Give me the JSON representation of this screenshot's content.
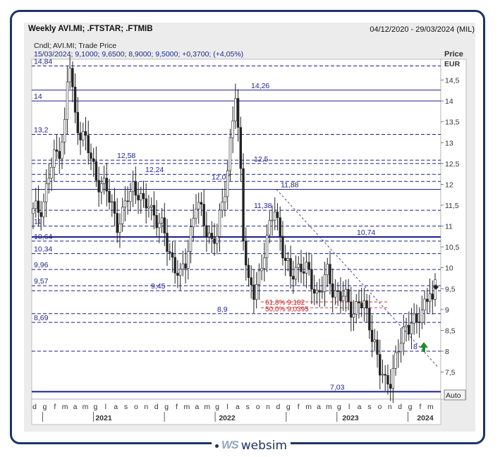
{
  "header": {
    "title": "Weekly AVI.MI; .FTSTAR; .FTMIB",
    "date_range": "04/12/2020 - 29/03/2024 (MIL)"
  },
  "brand": {
    "logo": "WS",
    "name": "websim"
  },
  "chart_data": {
    "type": "candlestick",
    "info_line_1": "Cndl; AVI.MI; Trade Price",
    "info_line_2": "15/03/2024; 9,1000; 9,6500; 8,9000; 9,5000; +0,3700; (+4,05%)",
    "ylabel": "Price",
    "yunit": "EUR",
    "ylim": [
      6.85,
      15.0
    ],
    "yticks": [
      "14,5",
      "14",
      "13,5",
      "13",
      "12,5",
      "12",
      "11,5",
      "11",
      "10,5",
      "10",
      "9,5",
      "9",
      "8,5",
      "8",
      "7,5"
    ],
    "ytick_values": [
      14.5,
      14,
      13.5,
      13,
      12.5,
      12,
      11.5,
      11,
      10.5,
      10,
      9.5,
      9,
      8.5,
      8,
      7.5
    ],
    "auto_label": "Auto",
    "x_month_letters": [
      "d",
      "g",
      "f",
      "m",
      "a",
      "m",
      "g",
      "l",
      "a",
      "s",
      "o",
      "n",
      "d",
      "g",
      "f",
      "m",
      "a",
      "m",
      "g",
      "l",
      "a",
      "s",
      "o",
      "n",
      "d",
      "g",
      "f",
      "m",
      "a",
      "m",
      "g",
      "l",
      "a",
      "s",
      "o",
      "n",
      "d",
      "g",
      "f",
      "m"
    ],
    "x_years": [
      "2021",
      "2022",
      "2023",
      "2024"
    ],
    "horizontal_levels": [
      {
        "label": "14,84",
        "value": 14.84,
        "style": "dashed"
      },
      {
        "label": "14,26",
        "value": 14.26,
        "style": "solid"
      },
      {
        "label": "14",
        "value": 14.0,
        "style": "solid"
      },
      {
        "label": "13,2",
        "value": 13.2,
        "style": "dashed"
      },
      {
        "label": "12,58",
        "value": 12.58,
        "style": "dashed"
      },
      {
        "label": "12,5",
        "value": 12.5,
        "style": "dashed"
      },
      {
        "label": "12,24",
        "value": 12.24,
        "style": "dashed"
      },
      {
        "label": "12,07",
        "value": 12.07,
        "style": "dashed"
      },
      {
        "label": "11,88",
        "value": 11.88,
        "style": "solid"
      },
      {
        "label": "11,38",
        "value": 11.38,
        "style": "dashed"
      },
      {
        "label": "11",
        "value": 11.0,
        "style": "dashed"
      },
      {
        "label": "10,74",
        "value": 10.74,
        "style": "solid"
      },
      {
        "label": "10,64",
        "value": 10.64,
        "style": "dashed"
      },
      {
        "label": "10,34",
        "value": 10.34,
        "style": "dashed"
      },
      {
        "label": "9,96",
        "value": 9.96,
        "style": "dashed"
      },
      {
        "label": "9,57",
        "value": 9.57,
        "style": "dashed"
      },
      {
        "label": "9,45",
        "value": 9.45,
        "style": "dashed"
      },
      {
        "label": "8,9",
        "value": 8.9,
        "style": "dashed"
      },
      {
        "label": "8,69",
        "value": 8.69,
        "style": "dashed"
      },
      {
        "label": "8",
        "value": 8.0,
        "style": "dashed"
      },
      {
        "label": "7,03",
        "value": 7.03,
        "style": "solid"
      }
    ],
    "fib_levels": [
      {
        "label": "61,8% 9,182",
        "value": 9.182
      },
      {
        "label": "50,0% 9,0395",
        "value": 9.0395
      }
    ],
    "price_track": [
      [
        0,
        11.3
      ],
      [
        2,
        11.4
      ],
      [
        4,
        11.6
      ],
      [
        6,
        12.2
      ],
      [
        8,
        12.6
      ],
      [
        10,
        12.9
      ],
      [
        12,
        13.4
      ],
      [
        13,
        14.4
      ],
      [
        14,
        14.84
      ],
      [
        15,
        14.2
      ],
      [
        16,
        13.6
      ],
      [
        18,
        13.3
      ],
      [
        20,
        13.0
      ],
      [
        22,
        12.6
      ],
      [
        24,
        12.2
      ],
      [
        26,
        12.0
      ],
      [
        28,
        11.8
      ],
      [
        30,
        11.5
      ],
      [
        32,
        11.1
      ],
      [
        34,
        11.2
      ],
      [
        36,
        11.7
      ],
      [
        38,
        12.0
      ],
      [
        40,
        11.8
      ],
      [
        42,
        11.4
      ],
      [
        44,
        11.6
      ],
      [
        46,
        11.3
      ],
      [
        48,
        11.0
      ],
      [
        50,
        10.8
      ],
      [
        52,
        10.4
      ],
      [
        54,
        10.0
      ],
      [
        56,
        9.7
      ],
      [
        58,
        10.2
      ],
      [
        60,
        10.9
      ],
      [
        62,
        11.5
      ],
      [
        64,
        11.3
      ],
      [
        66,
        11.0
      ],
      [
        68,
        10.6
      ],
      [
        70,
        10.7
      ],
      [
        72,
        11.6
      ],
      [
        74,
        12.4
      ],
      [
        76,
        13.5
      ],
      [
        77,
        14.1
      ],
      [
        78,
        13.2
      ],
      [
        79,
        12.3
      ],
      [
        80,
        10.9
      ],
      [
        82,
        9.6
      ],
      [
        84,
        9.3
      ],
      [
        86,
        9.8
      ],
      [
        88,
        10.5
      ],
      [
        90,
        10.9
      ],
      [
        92,
        11.4
      ],
      [
        94,
        10.8
      ],
      [
        96,
        10.2
      ],
      [
        98,
        9.7
      ],
      [
        100,
        10.0
      ],
      [
        102,
        10.1
      ],
      [
        104,
        9.9
      ],
      [
        106,
        9.6
      ],
      [
        108,
        9.4
      ],
      [
        110,
        9.6
      ],
      [
        112,
        9.8
      ],
      [
        114,
        9.5
      ],
      [
        116,
        9.4
      ],
      [
        118,
        9.3
      ],
      [
        120,
        9.1
      ],
      [
        122,
        9.0
      ],
      [
        124,
        9.2
      ],
      [
        126,
        9.0
      ],
      [
        128,
        8.7
      ],
      [
        130,
        8.2
      ],
      [
        132,
        7.5
      ],
      [
        134,
        7.2
      ],
      [
        136,
        7.4
      ],
      [
        138,
        7.8
      ],
      [
        140,
        8.2
      ],
      [
        142,
        8.6
      ],
      [
        144,
        8.8
      ],
      [
        146,
        8.6
      ],
      [
        148,
        8.9
      ],
      [
        150,
        9.4
      ],
      [
        151,
        9.6
      ],
      [
        152,
        9.1
      ],
      [
        153,
        9.5
      ]
    ],
    "last_close": 9.5
  }
}
